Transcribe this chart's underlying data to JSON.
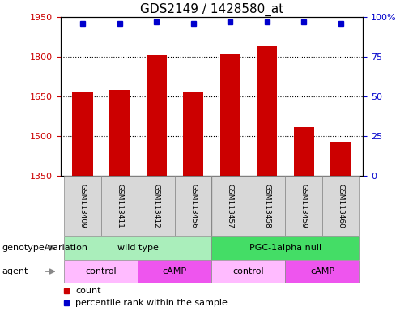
{
  "title": "GDS2149 / 1428580_at",
  "samples": [
    "GSM113409",
    "GSM113411",
    "GSM113412",
    "GSM113456",
    "GSM113457",
    "GSM113458",
    "GSM113459",
    "GSM113460"
  ],
  "counts": [
    1670,
    1675,
    1805,
    1665,
    1808,
    1840,
    1535,
    1480
  ],
  "percentile_ranks": [
    96,
    96,
    97,
    96,
    97,
    97,
    97,
    96
  ],
  "ylim_left": [
    1350,
    1950
  ],
  "ylim_right": [
    0,
    100
  ],
  "yticks_left": [
    1350,
    1500,
    1650,
    1800,
    1950
  ],
  "yticks_right": [
    0,
    25,
    50,
    75,
    100
  ],
  "bar_color": "#cc0000",
  "dot_color": "#0000cc",
  "grid_color": "#000000",
  "title_fontsize": 11,
  "genotype_groups": [
    {
      "label": "wild type",
      "start": 0,
      "end": 4,
      "color": "#aaeebb"
    },
    {
      "label": "PGC-1alpha null",
      "start": 4,
      "end": 8,
      "color": "#44dd66"
    }
  ],
  "agent_groups": [
    {
      "label": "control",
      "start": 0,
      "end": 2,
      "color": "#ffbbff"
    },
    {
      "label": "cAMP",
      "start": 2,
      "end": 4,
      "color": "#ee55ee"
    },
    {
      "label": "control",
      "start": 4,
      "end": 6,
      "color": "#ffbbff"
    },
    {
      "label": "cAMP",
      "start": 6,
      "end": 8,
      "color": "#ee55ee"
    }
  ],
  "legend_count_color": "#cc0000",
  "legend_dot_color": "#0000cc",
  "xlabel_genotype": "genotype/variation",
  "xlabel_agent": "agent",
  "bar_width": 0.55
}
